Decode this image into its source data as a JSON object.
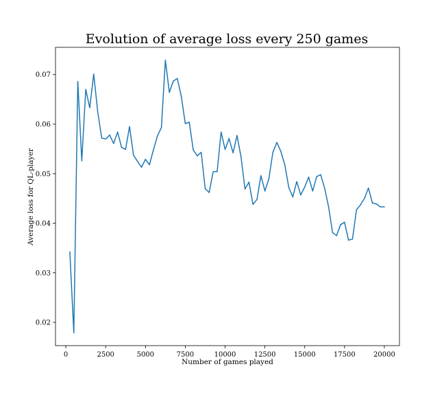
{
  "chart_data": {
    "type": "line",
    "title": "Evolution of average loss every 250 games",
    "xlabel": "Number of games played",
    "ylabel": "Average loss for QL-player",
    "xlim": [
      -650,
      20950
    ],
    "ylim": [
      0.0153,
      0.0755
    ],
    "xticks": [
      0,
      2500,
      5000,
      7500,
      10000,
      12500,
      15000,
      17500,
      20000
    ],
    "xtick_labels": [
      "0",
      "2500",
      "5000",
      "7500",
      "10000",
      "12500",
      "15000",
      "17500",
      "20000"
    ],
    "yticks": [
      0.02,
      0.03,
      0.04,
      0.05,
      0.06,
      0.07
    ],
    "ytick_labels": [
      "0.02",
      "0.03",
      "0.04",
      "0.05",
      "0.06",
      "0.07"
    ],
    "grid": false,
    "line_color": "#1f77b4",
    "series": [
      {
        "x": [
          250,
          500,
          750,
          1000,
          1250,
          1500,
          1750,
          2000,
          2250,
          2500,
          2750,
          3000,
          3250,
          3500,
          3750,
          4000,
          4250,
          4500,
          4750,
          5000,
          5250,
          5500,
          5750,
          6000,
          6250,
          6500,
          6750,
          7000,
          7250,
          7500,
          7750,
          8000,
          8250,
          8500,
          8750,
          9000,
          9250,
          9500,
          9750,
          10000,
          10250,
          10500,
          10750,
          11000,
          11250,
          11500,
          11750,
          12000,
          12250,
          12500,
          12750,
          13000,
          13250,
          13500,
          13750,
          14000,
          14250,
          14500,
          14750,
          15000,
          15250,
          15500,
          15750,
          16000,
          16250,
          16500,
          16750,
          17000,
          17250,
          17500,
          17750,
          18000,
          18250,
          18500,
          18750,
          19000,
          19250,
          19500,
          19750,
          20000
        ],
        "values": [
          0.0342,
          0.0179,
          0.0686,
          0.0526,
          0.067,
          0.0633,
          0.0701,
          0.0625,
          0.0572,
          0.057,
          0.0578,
          0.0561,
          0.0584,
          0.0553,
          0.0549,
          0.0595,
          0.0537,
          0.0525,
          0.0513,
          0.0529,
          0.0518,
          0.0548,
          0.0576,
          0.0593,
          0.0729,
          0.0664,
          0.0687,
          0.0692,
          0.0656,
          0.0601,
          0.0604,
          0.0548,
          0.0536,
          0.0543,
          0.047,
          0.0462,
          0.0504,
          0.0504,
          0.0584,
          0.0549,
          0.0571,
          0.0542,
          0.0577,
          0.0534,
          0.0469,
          0.0483,
          0.0438,
          0.0448,
          0.0496,
          0.0465,
          0.049,
          0.0543,
          0.0563,
          0.0545,
          0.0518,
          0.0472,
          0.0453,
          0.0484,
          0.0457,
          0.0473,
          0.0493,
          0.0465,
          0.0494,
          0.0498,
          0.0471,
          0.0433,
          0.0381,
          0.0375,
          0.0397,
          0.0402,
          0.0366,
          0.0368,
          0.0427,
          0.0437,
          0.045,
          0.0471,
          0.0441,
          0.0439,
          0.0433,
          0.0433
        ]
      }
    ]
  }
}
